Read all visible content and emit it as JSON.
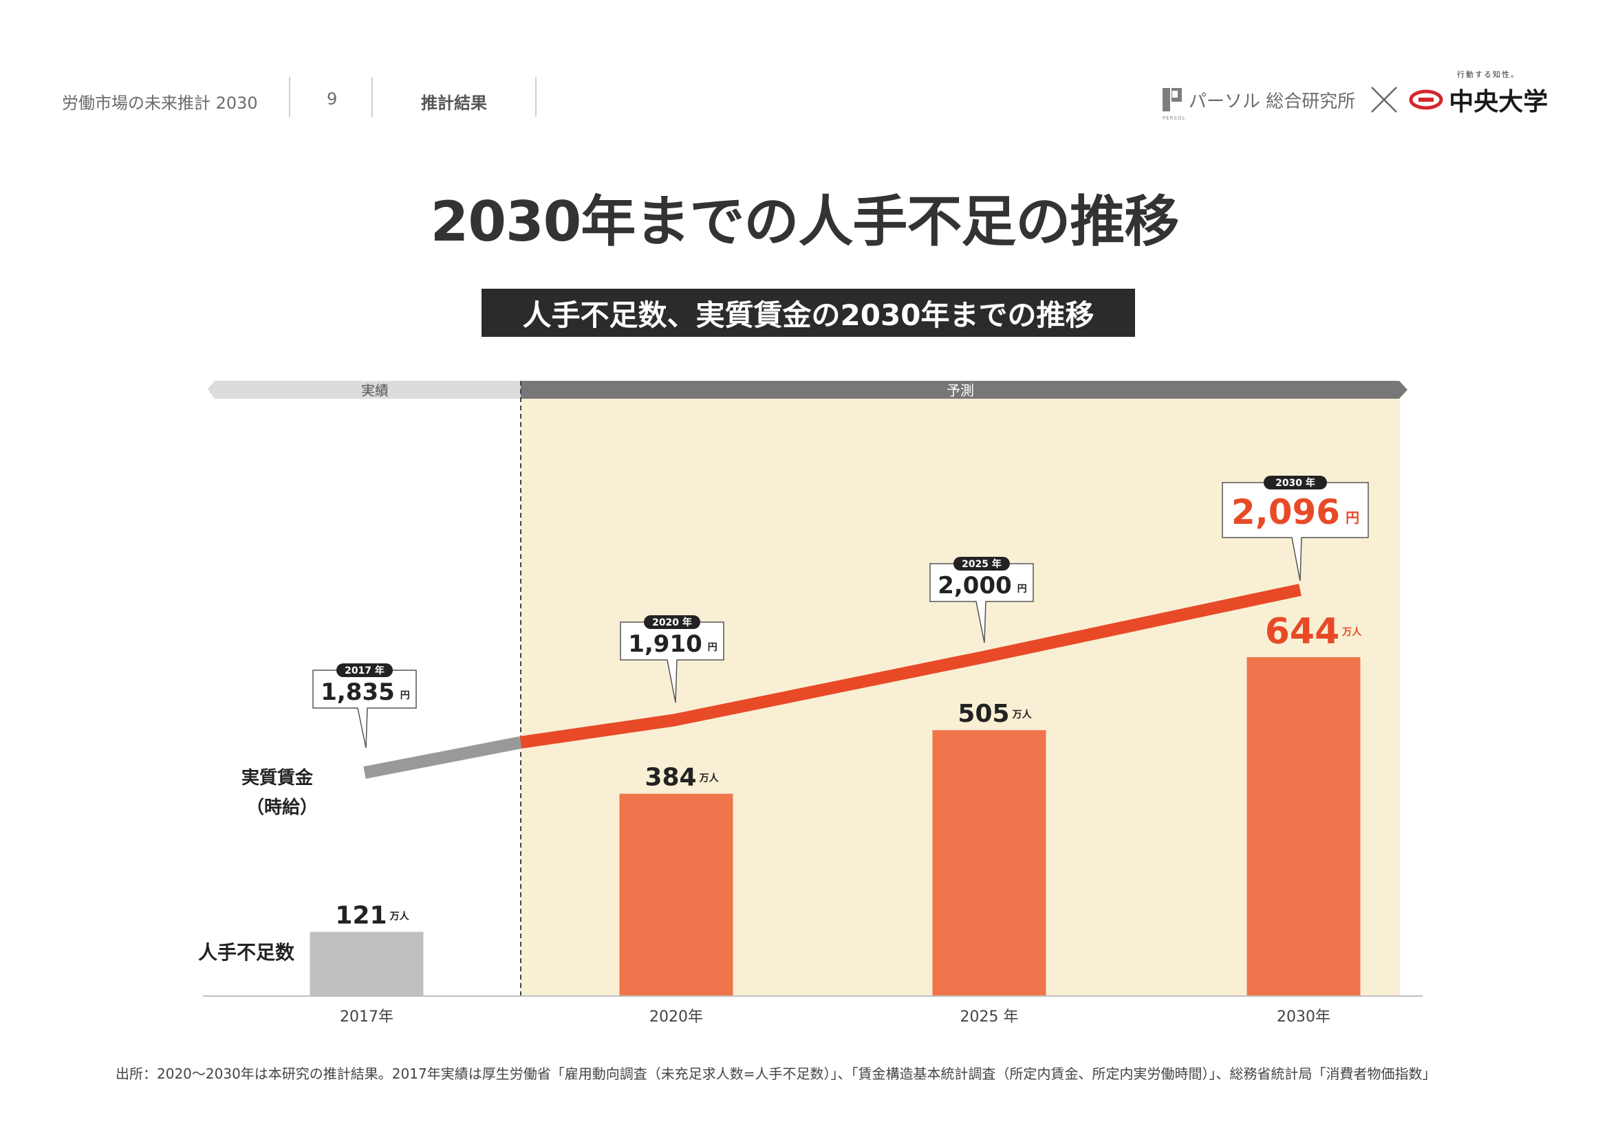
{
  "header": {
    "doc_title": "労働市場の未来推計 2030",
    "page_number": "9",
    "section": "推計結果",
    "persol_sub": "PERSOL",
    "persol_name": "パーソル 総合研究所",
    "chuo_tagline": "行動する知性。",
    "chuo_name": "中央大学"
  },
  "title": "2030年までの人手不足の推移",
  "subtitle": "人手不足数、実質賃金の2030年までの推移",
  "source": "出所：2020〜2030年は本研究の推計結果。2017年実績は厚生労働省「雇用動向調査（未充足求人数=人手不足数）」、「賃金構造基本統計調査（所定内賃金、所定内実労働時間）」、総務省統計局「消費者物価指数」",
  "chart_data": {
    "type": "bar",
    "categories": [
      "2017年",
      "2020年",
      "2025 年",
      "2030年"
    ],
    "period_labels": {
      "actual": "実績",
      "forecast": "予測"
    },
    "series": [
      {
        "name": "人手不足数",
        "type": "bar",
        "values": [
          121,
          384,
          505,
          644
        ],
        "unit": "万人",
        "labels": [
          "121",
          "384",
          "505",
          "644"
        ],
        "colors": [
          "#c0c0c1",
          "#f0754c",
          "#f0754c",
          "#f0754c"
        ]
      },
      {
        "name": "実質賃金",
        "name_line2": "（時給）",
        "type": "line",
        "values": [
          1835,
          1910,
          2000,
          2096
        ],
        "unit": "円",
        "labels": [
          "1,835",
          "1,910",
          "2,000",
          "2,096"
        ],
        "callout_years": [
          "2017 年",
          "2020 年",
          "2025 年",
          "2030 年"
        ],
        "colors": {
          "actual": "#999999",
          "forecast": "#e84a27"
        }
      }
    ],
    "colors": {
      "forecast_bg": "#f9efd5",
      "highlight_text": "#e84a27",
      "bar_text": "#222222"
    }
  }
}
